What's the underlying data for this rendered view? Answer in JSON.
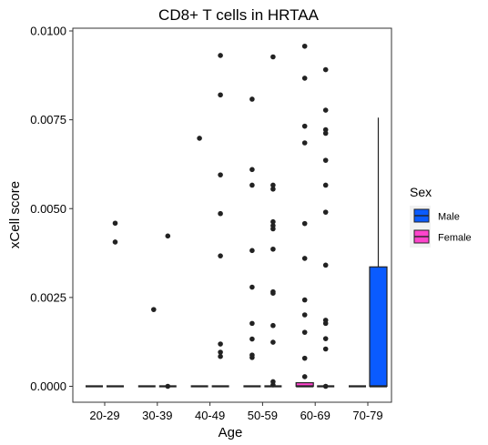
{
  "chart_data": {
    "type": "boxplot",
    "title": "CD8+ T cells in HRTAA",
    "xlabel": "Age",
    "ylabel": "xCell score",
    "categories": [
      "20-29",
      "30-39",
      "40-49",
      "50-59",
      "60-69",
      "70-79"
    ],
    "yticks": [
      "0.0000",
      "0.0025",
      "0.0050",
      "0.0075",
      "0.0100"
    ],
    "ylim": [
      -0.00045,
      0.0101
    ],
    "grid": false,
    "legend": {
      "title": "Sex",
      "position": "right",
      "entries": [
        {
          "label": "Male",
          "color": "#0a5bff"
        },
        {
          "label": "Female",
          "color": "#ff44cc"
        }
      ]
    },
    "series": [
      {
        "name": "Female",
        "color": "#ff44cc",
        "boxes": [
          {
            "category": "20-29",
            "min": 0,
            "q1": 0,
            "median": 0,
            "q3": 0,
            "max": 0
          },
          {
            "category": "30-39",
            "min": 0,
            "q1": 0,
            "median": 0,
            "q3": 0,
            "max": 0
          },
          {
            "category": "40-49",
            "min": 0,
            "q1": 0,
            "median": 0,
            "q3": 0,
            "max": 0
          },
          {
            "category": "50-59",
            "min": 0,
            "q1": 0,
            "median": 0,
            "q3": 0,
            "max": 0
          },
          {
            "category": "60-69",
            "min": 0,
            "q1": 0,
            "median": 0,
            "q3": 0.0001,
            "max": 0.0001
          },
          {
            "category": "70-79",
            "min": 0,
            "q1": 0,
            "median": 0,
            "q3": 0,
            "max": 0
          }
        ],
        "outliers": [
          {
            "category": "40-49",
            "values": [
              0.00698
            ]
          },
          {
            "category": "50-59",
            "values": [
              0.00808,
              0.0061,
              0.00566,
              0.00382,
              0.00279,
              0.00177,
              0.00133,
              0.00088,
              0.00081
            ]
          },
          {
            "category": "60-69",
            "values": [
              0.00957,
              0.00867,
              0.00732,
              0.00685,
              0.00458,
              0.0036,
              0.00243,
              0.00201,
              0.00152,
              0.00079,
              0.00027
            ]
          }
        ]
      },
      {
        "name": "Male",
        "color": "#0a5bff",
        "boxes": [
          {
            "category": "20-29",
            "min": 0,
            "q1": 0,
            "median": 0,
            "q3": 0,
            "max": 0
          },
          {
            "category": "30-39",
            "min": 0,
            "q1": 0,
            "median": 0,
            "q3": 0,
            "max": 0
          },
          {
            "category": "40-49",
            "min": 0,
            "q1": 0,
            "median": 0,
            "q3": 0,
            "max": 0
          },
          {
            "category": "50-59",
            "min": 0,
            "q1": 0,
            "median": 0,
            "q3": 0,
            "max": 0
          },
          {
            "category": "60-69",
            "min": 0,
            "q1": 0,
            "median": 0,
            "q3": 0,
            "max": 0
          },
          {
            "category": "70-79",
            "min": 0,
            "q1": 0,
            "median": 0,
            "q3": 0.00336,
            "max": 0.00756
          }
        ],
        "outliers": [
          {
            "category": "20-29",
            "values": [
              0.00459,
              0.00406
            ]
          },
          {
            "category": "30-39",
            "values": [
              0.00423,
              0
            ]
          },
          {
            "category": "40-49",
            "values": [
              0.00931,
              0.0082,
              0.00595,
              0.00486,
              0.00367,
              0.00119,
              0.00096,
              0.00084
            ]
          },
          {
            "category": "50-59",
            "values": [
              0.00927,
              0.00566,
              0.00555,
              0.00463,
              0.00452,
              0.00443,
              0.00386,
              0.00266,
              0.00262,
              0.00171,
              0.00124,
              0.00013,
              4e-05
            ]
          },
          {
            "category": "60-69",
            "values": [
              0.00891,
              0.00777,
              0.00722,
              0.00712,
              0.00636,
              0.00566,
              0.0049,
              0.00341,
              0.00186,
              0.00177,
              0.00134,
              0.00105,
              0
            ]
          }
        ]
      }
    ],
    "extra_points": [
      {
        "category": "30-39",
        "value": 0.00216
      }
    ]
  }
}
